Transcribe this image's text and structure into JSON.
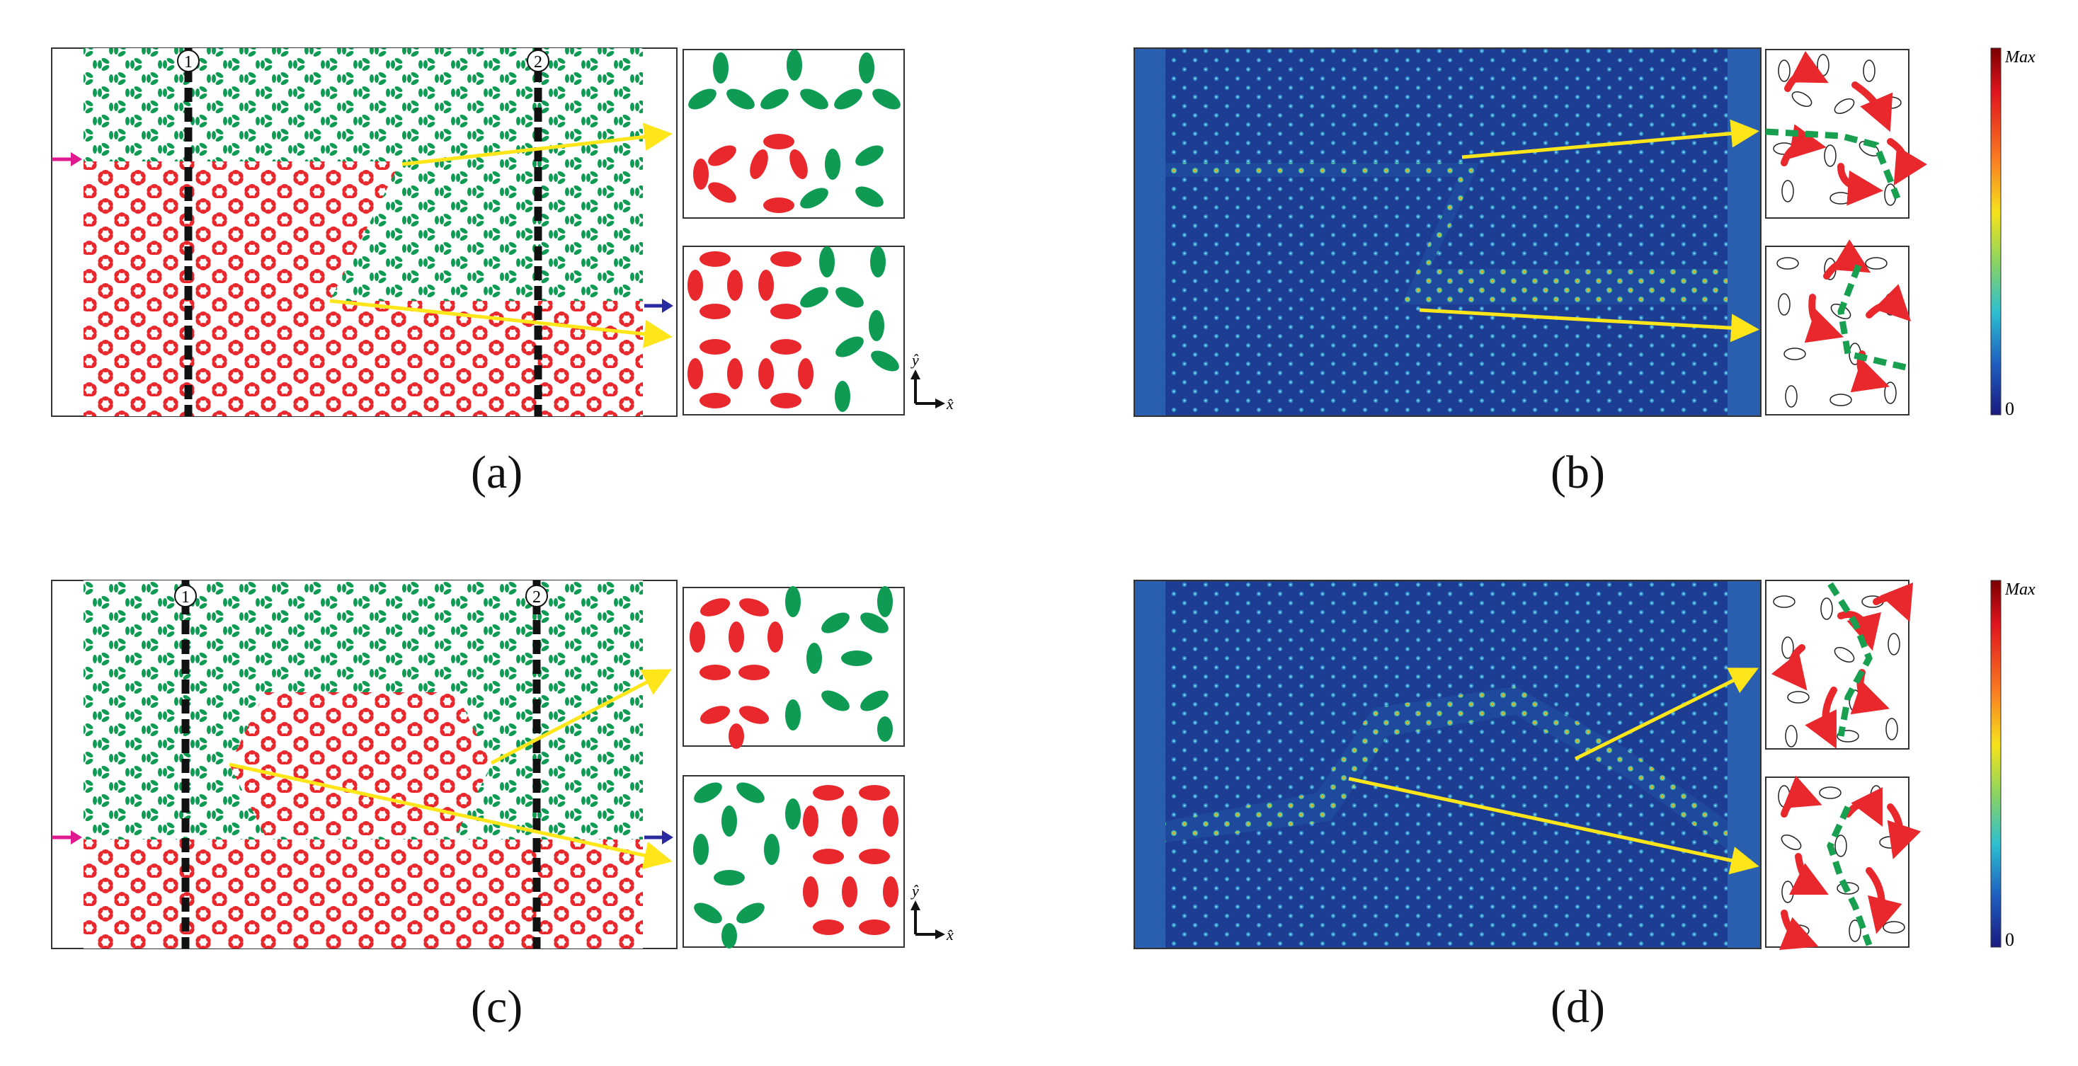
{
  "panels": {
    "a": {
      "label": "(a)",
      "marker_1": "1",
      "marker_2": "2"
    },
    "b": {
      "label": "(b)",
      "colorbar_max": "Max",
      "colorbar_min": "0"
    },
    "c": {
      "label": "(c)",
      "marker_1": "1",
      "marker_2": "2"
    },
    "d": {
      "label": "(d)",
      "colorbar_max": "Max",
      "colorbar_min": "0"
    }
  },
  "axes_glyphs": {
    "y": "ŷ",
    "x": "x̂"
  },
  "colors": {
    "green_lattice": "#0f9b54",
    "red_lattice": "#e8282d",
    "field_background": "#1a3f8f",
    "arrow_yellow": "#ffe61a",
    "input_arrow": "#e0198f",
    "output_arrow": "#2a2aa0",
    "edge_state_dash": "#18a050"
  },
  "colorbar_stops": [
    "#7a0000",
    "#e0141e",
    "#f97b22",
    "#f5e31c",
    "#8dd35f",
    "#2dbfd0",
    "#1e5fc0",
    "#1a1a80"
  ]
}
